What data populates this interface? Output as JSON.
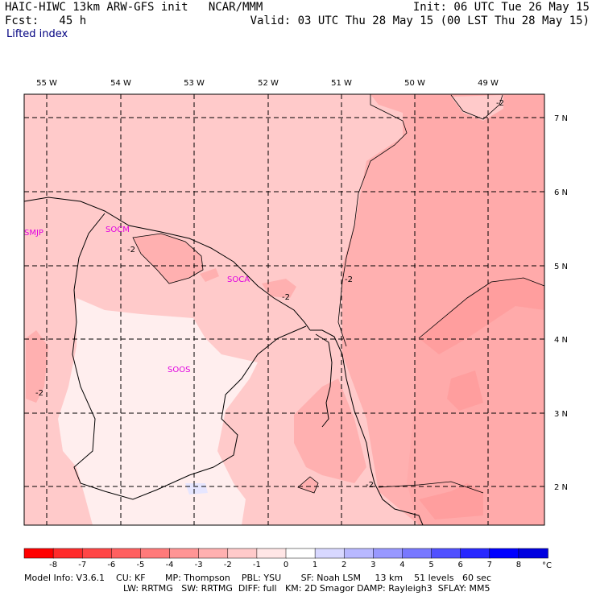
{
  "header": {
    "left_line1": "HAIC-HIWC 13km ARW-GFS init   NCAR/MMM",
    "left_line2": "Fcst:   45 h",
    "right_line1": "Init: 06 UTC Tue 26 May 15",
    "right_line2": "Valid: 03 UTC Thu 28 May 15 (00 LST Thu 28 May 15)",
    "field_name": "Lifted index"
  },
  "map": {
    "longitude_labels": [
      "55 W",
      "54 W",
      "53 W",
      "52 W",
      "51 W",
      "50 W",
      "49 W"
    ],
    "latitude_labels": [
      "7 N",
      "6 N",
      "5 N",
      "4 N",
      "3 N",
      "2 N"
    ],
    "stations": [
      "SMJP",
      "SOCM",
      "SOCA",
      "SOOS"
    ],
    "contour_labels": [
      "-2",
      "-2",
      "-2",
      "-2",
      "-2",
      "-2"
    ]
  },
  "colorbar": {
    "ticks": [
      "-8",
      "-7",
      "-6",
      "-5",
      "-4",
      "-3",
      "-2",
      "-1",
      "0",
      "1",
      "2",
      "3",
      "4",
      "5",
      "6",
      "7",
      "8"
    ],
    "unit": "°C",
    "colors": [
      "#ff0000",
      "#ff2b2b",
      "#ff4646",
      "#ff6060",
      "#ff7a7a",
      "#ff9595",
      "#ffb0b0",
      "#ffcaca",
      "#ffe6e6",
      "#ffffff",
      "#d8d8ff",
      "#b8b8ff",
      "#9898ff",
      "#7878ff",
      "#5050ff",
      "#2828ff",
      "#0000ff",
      "#0000e0"
    ]
  },
  "footer": {
    "line1": "Model Info: V3.6.1    CU: KF       MP: Thompson    PBL: YSU       SF: Noah LSM     13 km    51 levels   60 sec",
    "line2": "LW: RRTMG   SW: RRTMG  DIFF: full   KM: 2D Smagor DAMP: Rayleigh3  SFLAY: MM5"
  }
}
